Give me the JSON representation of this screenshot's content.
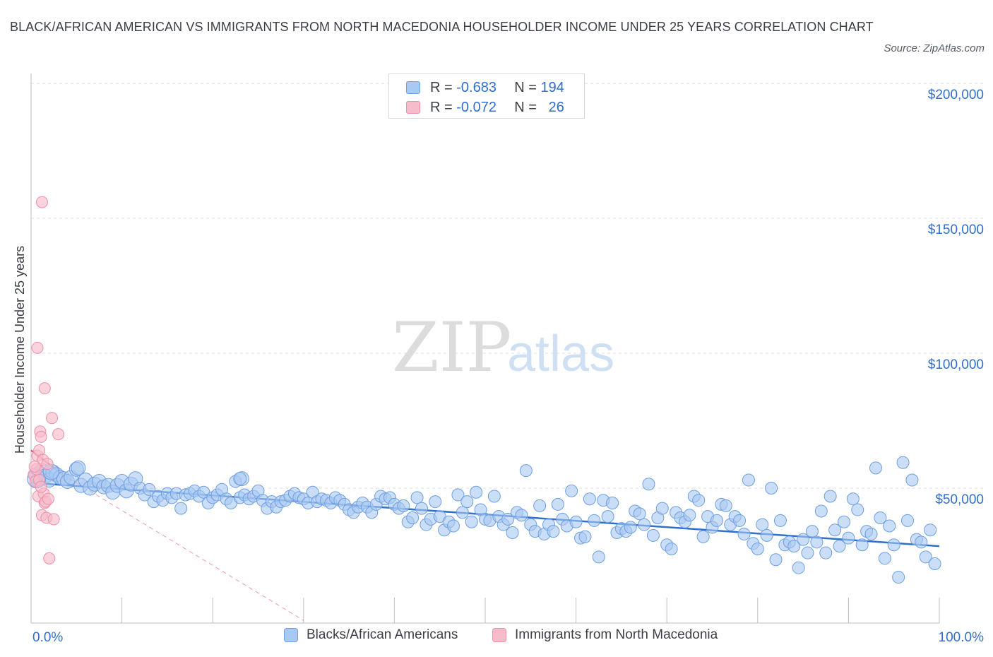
{
  "title": "BLACK/AFRICAN AMERICAN VS IMMIGRANTS FROM NORTH MACEDONIA HOUSEHOLDER INCOME UNDER 25 YEARS CORRELATION CHART",
  "source": "Source: ZipAtlas.com",
  "watermark": {
    "zip": "ZIP",
    "atlas": "atlas"
  },
  "legend": {
    "series1": {
      "r_label": "R =",
      "r_value": "-0.683",
      "n_label": "N =",
      "n_value": "194"
    },
    "series2": {
      "r_label": "R =",
      "r_value": "-0.072",
      "n_label": "N =",
      "n_value": "26"
    }
  },
  "bottom_legend": {
    "series1": "Blacks/African Americans",
    "series2": "Immigrants from North Macedonia"
  },
  "colors": {
    "blue_fill": "#a9c8f2",
    "blue_stroke": "#6d9fe3",
    "blue_line": "#2f6fce",
    "pink_fill": "#f7bccb",
    "pink_stroke": "#ee8fa9",
    "pink_line": "#e0557c",
    "axis_text": "#2f6fce",
    "grid": "#dcdcdc"
  },
  "chart_data": {
    "type": "scatter",
    "title": "BLACK/AFRICAN AMERICAN VS IMMIGRANTS FROM NORTH MACEDONIA HOUSEHOLDER INCOME UNDER 25 YEARS CORRELATION CHART",
    "xlabel": "",
    "ylabel": "Householder Income Under 25 years",
    "xlim": [
      0,
      100
    ],
    "ylim": [
      0,
      200000
    ],
    "x_tick_labels": [
      "0.0%",
      "100.0%"
    ],
    "y_ticks": [
      50000,
      100000,
      150000,
      200000
    ],
    "y_tick_labels": [
      "$50,000",
      "$100,000",
      "$150,000",
      "$200,000"
    ],
    "series": [
      {
        "name": "Blacks/African Americans",
        "color": "#a9c8f2",
        "trend": {
          "x": [
            0,
            100
          ],
          "y": [
            52000,
            28500
          ]
        },
        "points": [
          [
            0.5,
            55000
          ],
          [
            0.8,
            53000
          ],
          [
            1.2,
            56500
          ],
          [
            1.6,
            54500
          ],
          [
            2.0,
            53000
          ],
          [
            2.4,
            56000
          ],
          [
            2.8,
            55000
          ],
          [
            3.2,
            54000
          ],
          [
            3.6,
            53500
          ],
          [
            4.0,
            52500
          ],
          [
            4.4,
            54000
          ],
          [
            5.0,
            57000
          ],
          [
            5.5,
            51000
          ],
          [
            6.0,
            53000
          ],
          [
            6.5,
            50000
          ],
          [
            7.0,
            51500
          ],
          [
            7.5,
            52500
          ],
          [
            8.0,
            50500
          ],
          [
            8.5,
            51000
          ],
          [
            9.0,
            48500
          ],
          [
            9.5,
            51000
          ],
          [
            10.0,
            52500
          ],
          [
            10.5,
            49000
          ],
          [
            11.0,
            51500
          ],
          [
            11.5,
            53500
          ],
          [
            12.0,
            50000
          ],
          [
            12.5,
            47500
          ],
          [
            13.0,
            49500
          ],
          [
            13.5,
            45000
          ],
          [
            14.0,
            47000
          ],
          [
            14.5,
            45500
          ],
          [
            15.0,
            48000
          ],
          [
            15.5,
            46500
          ],
          [
            16.0,
            48000
          ],
          [
            16.5,
            42500
          ],
          [
            17.0,
            47500
          ],
          [
            17.5,
            48000
          ],
          [
            18.0,
            49000
          ],
          [
            18.5,
            47000
          ],
          [
            19.0,
            48500
          ],
          [
            19.5,
            44500
          ],
          [
            20.0,
            46500
          ],
          [
            20.5,
            47500
          ],
          [
            21.0,
            49500
          ],
          [
            21.5,
            46000
          ],
          [
            22.0,
            44500
          ],
          [
            22.5,
            52500
          ],
          [
            23.0,
            46500
          ],
          [
            23.5,
            47500
          ],
          [
            24.0,
            46000
          ],
          [
            24.5,
            47000
          ],
          [
            25.0,
            49000
          ],
          [
            25.5,
            45500
          ],
          [
            26.0,
            42500
          ],
          [
            26.5,
            45000
          ],
          [
            27.0,
            43000
          ],
          [
            27.5,
            45000
          ],
          [
            28.0,
            45500
          ],
          [
            28.5,
            47000
          ],
          [
            29.0,
            48000
          ],
          [
            29.5,
            46500
          ],
          [
            30.0,
            46000
          ],
          [
            30.5,
            44500
          ],
          [
            31.0,
            48500
          ],
          [
            31.5,
            45000
          ],
          [
            32.0,
            46000
          ],
          [
            32.5,
            45500
          ],
          [
            33.0,
            44500
          ],
          [
            33.5,
            46500
          ],
          [
            34.0,
            45500
          ],
          [
            34.5,
            44000
          ],
          [
            35.0,
            42000
          ],
          [
            35.5,
            41000
          ],
          [
            36.0,
            43000
          ],
          [
            36.5,
            44500
          ],
          [
            37.0,
            43000
          ],
          [
            37.5,
            41000
          ],
          [
            38.0,
            44000
          ],
          [
            38.5,
            47000
          ],
          [
            39.0,
            46000
          ],
          [
            39.5,
            46500
          ],
          [
            40.0,
            44000
          ],
          [
            40.5,
            42500
          ],
          [
            41.0,
            43500
          ],
          [
            41.5,
            37500
          ],
          [
            42.0,
            39000
          ],
          [
            42.5,
            46500
          ],
          [
            43.0,
            42500
          ],
          [
            43.5,
            36500
          ],
          [
            44.0,
            38500
          ],
          [
            44.5,
            45000
          ],
          [
            45.0,
            39500
          ],
          [
            45.5,
            34500
          ],
          [
            46.0,
            37500
          ],
          [
            46.5,
            36000
          ],
          [
            47.0,
            47500
          ],
          [
            47.5,
            41000
          ],
          [
            48.0,
            45000
          ],
          [
            48.5,
            37500
          ],
          [
            49.0,
            48500
          ],
          [
            49.5,
            42000
          ],
          [
            50.0,
            38500
          ],
          [
            50.5,
            38000
          ],
          [
            51.0,
            47000
          ],
          [
            51.5,
            39500
          ],
          [
            52.0,
            36500
          ],
          [
            52.5,
            38500
          ],
          [
            53.0,
            33500
          ],
          [
            53.5,
            41000
          ],
          [
            54.0,
            40000
          ],
          [
            54.5,
            56500
          ],
          [
            55.0,
            36500
          ],
          [
            55.5,
            34000
          ],
          [
            56.0,
            43500
          ],
          [
            56.5,
            33000
          ],
          [
            57.0,
            36500
          ],
          [
            57.5,
            34000
          ],
          [
            58.0,
            44000
          ],
          [
            58.5,
            38500
          ],
          [
            59.0,
            36000
          ],
          [
            59.5,
            49000
          ],
          [
            60.0,
            37500
          ],
          [
            60.5,
            31500
          ],
          [
            61.0,
            32000
          ],
          [
            61.5,
            46000
          ],
          [
            62.0,
            38000
          ],
          [
            62.5,
            24500
          ],
          [
            63.0,
            45500
          ],
          [
            63.5,
            39500
          ],
          [
            64.0,
            44500
          ],
          [
            64.5,
            33500
          ],
          [
            65.0,
            35000
          ],
          [
            65.5,
            34000
          ],
          [
            66.0,
            35500
          ],
          [
            66.5,
            41500
          ],
          [
            67.0,
            40500
          ],
          [
            67.5,
            36500
          ],
          [
            68.0,
            51500
          ],
          [
            68.5,
            32500
          ],
          [
            69.0,
            39000
          ],
          [
            69.5,
            42500
          ],
          [
            70.0,
            29000
          ],
          [
            70.5,
            27500
          ],
          [
            71.0,
            41000
          ],
          [
            71.5,
            39000
          ],
          [
            72.0,
            37500
          ],
          [
            72.5,
            40000
          ],
          [
            73.0,
            47000
          ],
          [
            73.5,
            45500
          ],
          [
            74.0,
            32000
          ],
          [
            74.5,
            39500
          ],
          [
            75.0,
            35500
          ],
          [
            75.5,
            38000
          ],
          [
            76.0,
            44000
          ],
          [
            76.5,
            43500
          ],
          [
            77.0,
            36500
          ],
          [
            77.5,
            39500
          ],
          [
            78.0,
            38000
          ],
          [
            78.5,
            33000
          ],
          [
            79.0,
            53000
          ],
          [
            79.5,
            29500
          ],
          [
            80.0,
            27500
          ],
          [
            80.5,
            36500
          ],
          [
            81.0,
            32500
          ],
          [
            81.5,
            50000
          ],
          [
            82.0,
            23500
          ],
          [
            82.5,
            38000
          ],
          [
            83.0,
            29000
          ],
          [
            83.5,
            30000
          ],
          [
            84.0,
            28500
          ],
          [
            84.5,
            20500
          ],
          [
            85.0,
            31000
          ],
          [
            85.5,
            26000
          ],
          [
            86.0,
            34000
          ],
          [
            86.5,
            30000
          ],
          [
            87.0,
            41500
          ],
          [
            87.5,
            26000
          ],
          [
            88.0,
            47000
          ],
          [
            88.5,
            34500
          ],
          [
            89.0,
            28500
          ],
          [
            89.5,
            37500
          ],
          [
            90.0,
            31500
          ],
          [
            90.5,
            46000
          ],
          [
            91.0,
            42000
          ],
          [
            91.5,
            29000
          ],
          [
            92.0,
            34000
          ],
          [
            92.5,
            33000
          ],
          [
            93.0,
            57500
          ],
          [
            93.5,
            39000
          ],
          [
            94.0,
            24000
          ],
          [
            94.5,
            36000
          ],
          [
            95.0,
            29000
          ],
          [
            95.5,
            17000
          ],
          [
            96.0,
            59500
          ],
          [
            96.5,
            38000
          ],
          [
            97.0,
            53000
          ],
          [
            97.5,
            31000
          ],
          [
            98.0,
            30000
          ],
          [
            98.5,
            24500
          ],
          [
            99.0,
            34500
          ],
          [
            99.5,
            22000
          ]
        ]
      },
      {
        "name": "Immigrants from North Macedonia",
        "color": "#f7bccb",
        "trend": {
          "x": [
            0,
            3.5
          ],
          "y": [
            64000,
            55000
          ]
        },
        "trend_extension": {
          "x": [
            3.5,
            30
          ],
          "y": [
            55000,
            1000
          ]
        },
        "points": [
          [
            0.3,
            55000
          ],
          [
            0.5,
            52500
          ],
          [
            0.6,
            57000
          ],
          [
            0.7,
            62000
          ],
          [
            0.8,
            47000
          ],
          [
            0.9,
            64000
          ],
          [
            1.0,
            71000
          ],
          [
            1.1,
            69000
          ],
          [
            1.2,
            40000
          ],
          [
            1.3,
            60500
          ],
          [
            1.4,
            48000
          ],
          [
            1.5,
            44500
          ],
          [
            1.6,
            45000
          ],
          [
            1.7,
            39000
          ],
          [
            1.8,
            59000
          ],
          [
            2.0,
            24000
          ],
          [
            2.3,
            76000
          ],
          [
            3.0,
            70000
          ],
          [
            0.7,
            102000
          ],
          [
            1.2,
            156000
          ],
          [
            1.5,
            87000
          ],
          [
            0.4,
            58000
          ],
          [
            2.5,
            38500
          ],
          [
            0.9,
            53000
          ],
          [
            1.1,
            50500
          ],
          [
            1.9,
            46000
          ]
        ]
      }
    ]
  }
}
